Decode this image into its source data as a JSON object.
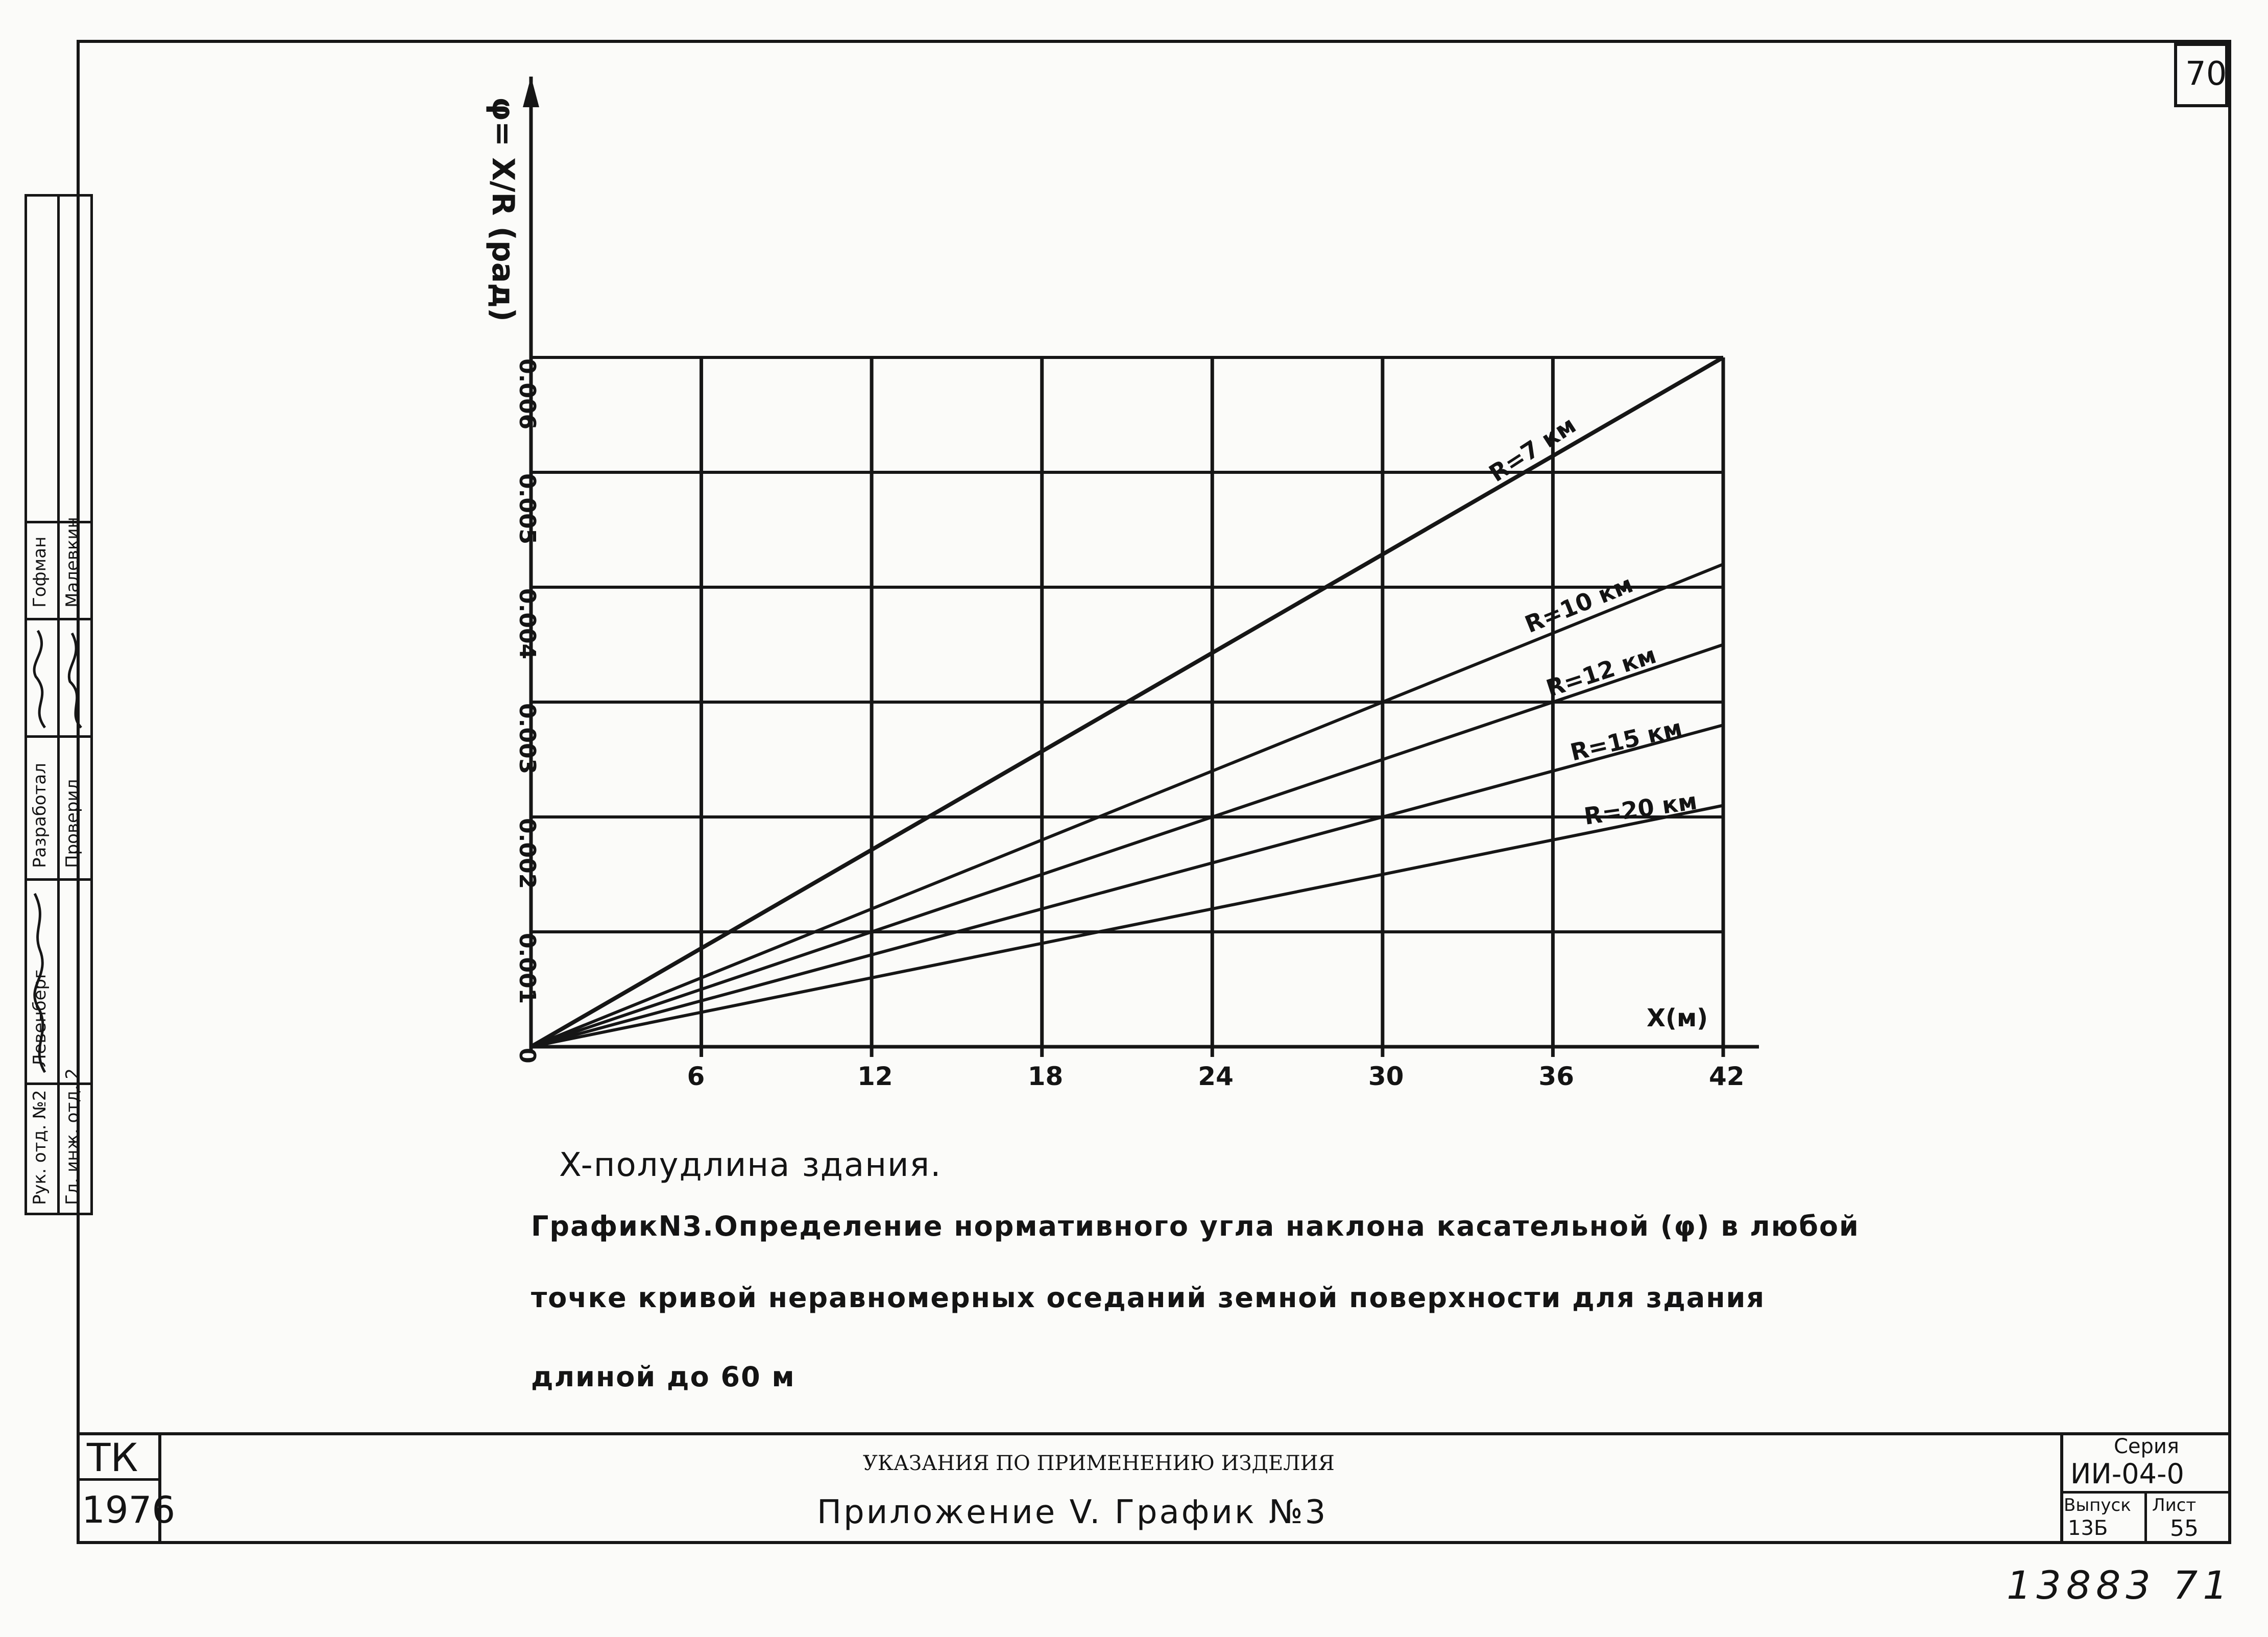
{
  "sheet": {
    "page_number": "70",
    "corner_number": "13883 71",
    "org_code": "ТК",
    "org_year": "1976"
  },
  "side_stamp": {
    "rows": [
      {
        "role": "Рук. отд. №2",
        "name": "Левенберг"
      },
      {
        "role": "Разработал",
        "name": "Гофман"
      },
      {
        "role": "Гл. инж. отд. 2",
        "name": ""
      },
      {
        "role": "Проверил",
        "name": "Малевкин"
      }
    ]
  },
  "notes": {
    "x_definition": "X-полудлина здания.",
    "caption_line1": "ГрафикN3.Определение нормативного угла наклона касательной (φ) в любой",
    "caption_line2": "точке кривой неравномерных оседаний земной поверхности для здания",
    "caption_line3": "длиной до 60 м"
  },
  "title_block": {
    "line1": "УКАЗАНИЯ ПО ПРИМЕНЕНИЮ ИЗДЕЛИЯ",
    "line2": "Приложение V.  График №3",
    "series_label": "Серия",
    "series_value": "ИИ-04-0",
    "issue_label": "Выпуск",
    "issue_value": "13Б",
    "sheet_label": "Лист",
    "sheet_value": "55"
  },
  "chart_data": {
    "type": "line",
    "ylabel": "φ= X/R (рад)",
    "xlabel": "X(м)",
    "xlim": [
      0,
      42
    ],
    "ylim": [
      0,
      0.006
    ],
    "x_ticks": [
      6,
      12,
      18,
      24,
      30,
      36,
      42
    ],
    "y_ticks": [
      0,
      0.001,
      0.002,
      0.003,
      0.004,
      0.005,
      0.006
    ],
    "x_tick_labels": [
      "6",
      "12",
      "18",
      "24",
      "30",
      "36",
      "42"
    ],
    "y_tick_labels": [
      "0",
      "0.001",
      "0.002",
      "0.003",
      "0.004",
      "0.005",
      "0.006"
    ],
    "grid": true,
    "series": [
      {
        "name": "R=7 км",
        "x": [
          0,
          42
        ],
        "y": [
          0,
          0.006
        ]
      },
      {
        "name": "R=10 км",
        "x": [
          0,
          42
        ],
        "y": [
          0,
          0.0042
        ]
      },
      {
        "name": "R=12 км",
        "x": [
          0,
          42
        ],
        "y": [
          0,
          0.0035
        ]
      },
      {
        "name": "R=15 км",
        "x": [
          0,
          42
        ],
        "y": [
          0,
          0.0028
        ]
      },
      {
        "name": "R=20 км",
        "x": [
          0,
          42
        ],
        "y": [
          0,
          0.0021
        ]
      }
    ]
  }
}
